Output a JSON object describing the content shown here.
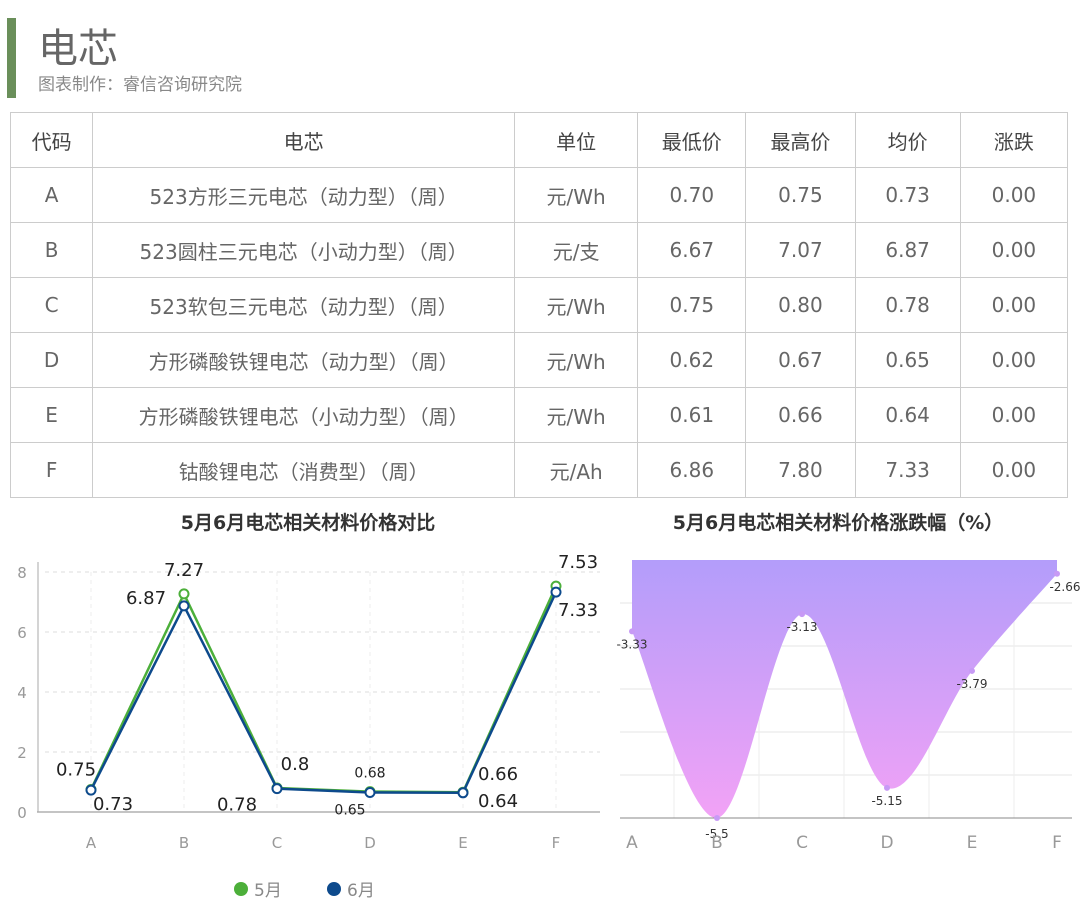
{
  "header": {
    "title": "电芯",
    "subtitle": "图表制作：睿信咨询研究院",
    "accent": "#6a8f5a"
  },
  "table": {
    "columns": [
      "代码",
      "电芯",
      "单位",
      "最低价",
      "最高价",
      "均价",
      "涨跌"
    ],
    "rows": [
      [
        "A",
        "523方形三元电芯（动力型）（周）",
        "元/Wh",
        "0.70",
        "0.75",
        "0.73",
        "0.00"
      ],
      [
        "B",
        "523圆柱三元电芯（小动力型）（周）",
        "元/支",
        "6.67",
        "7.07",
        "6.87",
        "0.00"
      ],
      [
        "C",
        "523软包三元电芯（动力型）（周）",
        "元/Wh",
        "0.75",
        "0.80",
        "0.78",
        "0.00"
      ],
      [
        "D",
        "方形磷酸铁锂电芯（动力型）（周）",
        "元/Wh",
        "0.62",
        "0.67",
        "0.65",
        "0.00"
      ],
      [
        "E",
        "方形磷酸铁锂电芯（小动力型）（周）",
        "元/Wh",
        "0.61",
        "0.66",
        "0.64",
        "0.00"
      ],
      [
        "F",
        "钴酸锂电芯（消费型）（周）",
        "元/Ah",
        "6.86",
        "7.80",
        "7.33",
        "0.00"
      ]
    ]
  },
  "chart_data": [
    {
      "type": "line",
      "title": "5月6月电芯相关材料价格对比",
      "categories": [
        "A",
        "B",
        "C",
        "D",
        "E",
        "F"
      ],
      "ylim": [
        0,
        8
      ],
      "yticks": [
        "0",
        "2",
        "4",
        "6",
        "8"
      ],
      "grid": true,
      "legend": "bottom",
      "series": [
        {
          "name": "5月",
          "color": "#4caf3a",
          "values": [
            0.75,
            7.27,
            0.8,
            0.68,
            0.66,
            7.53
          ],
          "labels": [
            "0.75",
            "7.27",
            "0.8",
            "0.68",
            "0.66",
            "7.53"
          ]
        },
        {
          "name": "6月",
          "color": "#0d4a8c",
          "values": [
            0.73,
            6.87,
            0.78,
            0.65,
            0.64,
            7.33
          ],
          "labels": [
            "0.73",
            "6.87",
            "0.78",
            "0.65",
            "0.64",
            "7.33"
          ]
        }
      ]
    },
    {
      "type": "area",
      "title": "5月6月电芯相关材料价格涨跌幅（%）",
      "categories": [
        "A",
        "B",
        "C",
        "D",
        "E",
        "F"
      ],
      "ylim": [
        -5.5,
        -2.5
      ],
      "grid": true,
      "values": [
        -3.33,
        -5.5,
        -3.13,
        -5.15,
        -3.79,
        -2.66
      ],
      "labels": [
        "-3.33",
        "-5.5",
        "-3.13",
        "-5.15",
        "-3.79",
        "-2.66"
      ],
      "colors": [
        "#b39dfa",
        "#f2a2f6"
      ]
    }
  ]
}
